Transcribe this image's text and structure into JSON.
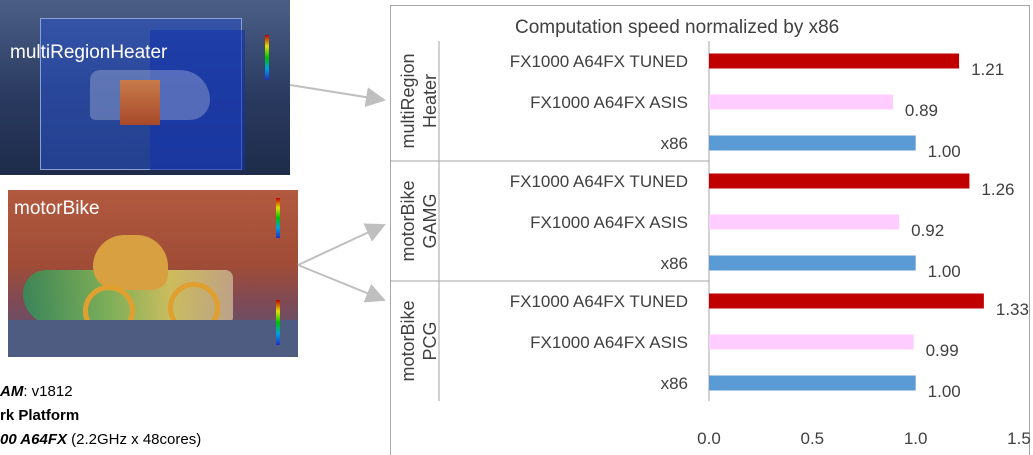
{
  "images": {
    "multi_region_label": "multiRegionHeater",
    "motorbike_label": "motorBike"
  },
  "captions": {
    "line1_bold": "AM",
    "line1_rest": ": v1812",
    "line2_bold": "rk Platform",
    "line3_bold": "00 A64FX",
    "line3_rest": " (2.2GHz x 48cores)"
  },
  "colors": {
    "tuned": "#c00000",
    "asis": "#ffccff",
    "x86": "#5b9bd5",
    "text": "#404040",
    "separator": "#a6a6a6"
  },
  "chart_data": {
    "type": "bar",
    "orientation": "horizontal",
    "title": "Computation speed normalized by x86",
    "xlim": [
      0.0,
      1.5
    ],
    "xticks": [
      "0.0",
      "0.5",
      "1.0",
      "1.5"
    ],
    "grid": false,
    "groups": [
      {
        "label_lines": [
          "multiRegion",
          "Heater"
        ],
        "bars": [
          {
            "label": "FX1000 A64FX TUNED",
            "value": 1.21,
            "value_label": "1.21",
            "series": "tuned"
          },
          {
            "label": "FX1000 A64FX ASIS",
            "value": 0.89,
            "value_label": "0.89",
            "series": "asis"
          },
          {
            "label": "x86",
            "value": 1.0,
            "value_label": "1.00",
            "series": "x86"
          }
        ]
      },
      {
        "label_lines": [
          "motorBike",
          "GAMG"
        ],
        "bars": [
          {
            "label": "FX1000 A64FX TUNED",
            "value": 1.26,
            "value_label": "1.26",
            "series": "tuned"
          },
          {
            "label": "FX1000 A64FX ASIS",
            "value": 0.92,
            "value_label": "0.92",
            "series": "asis"
          },
          {
            "label": "x86",
            "value": 1.0,
            "value_label": "1.00",
            "series": "x86"
          }
        ]
      },
      {
        "label_lines": [
          "motorBike",
          "PCG"
        ],
        "bars": [
          {
            "label": "FX1000 A64FX TUNED",
            "value": 1.33,
            "value_label": "1.33",
            "series": "tuned"
          },
          {
            "label": "FX1000 A64FX ASIS",
            "value": 0.99,
            "value_label": "0.99",
            "series": "asis"
          },
          {
            "label": "x86",
            "value": 1.0,
            "value_label": "1.00",
            "series": "x86"
          }
        ]
      }
    ]
  }
}
